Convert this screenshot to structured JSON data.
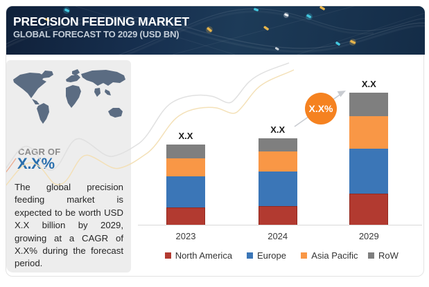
{
  "header": {
    "title": "PRECISION FEEDING MARKET",
    "subtitle": "GLOBAL FORECAST TO 2029 (USD BN)"
  },
  "sidebar": {
    "cagr_label": "CAGR OF",
    "cagr_value": "X.X%",
    "description": "The global precision feeding market is expected to be worth USD X.X billion by 2029, growing at a CAGR of X.X% during the forecast period."
  },
  "chart_data": {
    "type": "bar",
    "stacked": true,
    "title": "Precision Feeding Market, Global Forecast to 2029 (USD BN)",
    "categories": [
      "2023",
      "2024",
      "2029"
    ],
    "series": [
      {
        "name": "North America",
        "color": "#b23a30",
        "values": [
          25.5,
          28,
          45.5
        ]
      },
      {
        "name": "Europe",
        "color": "#3b76b7",
        "values": [
          45.5,
          50,
          65
        ]
      },
      {
        "name": "Asia Pacific",
        "color": "#f99746",
        "values": [
          26,
          28.5,
          47
        ]
      },
      {
        "name": "RoW",
        "color": "#7f7f7f",
        "values": [
          19.5,
          19.5,
          34
        ]
      }
    ],
    "value_unit": "relative height (numeric labels masked as X.X in source)",
    "bar_total_labels": [
      "X.X",
      "X.X",
      "X.X"
    ],
    "growth_badge_label": "X.X%",
    "legend_position": "bottom",
    "grid": false
  },
  "colors": {
    "accent_blue": "#2a6fad",
    "badge_orange": "#f58220",
    "header_navy": "#16304d",
    "panel_gray": "#ededed",
    "map_slate": "#5b6c82"
  }
}
